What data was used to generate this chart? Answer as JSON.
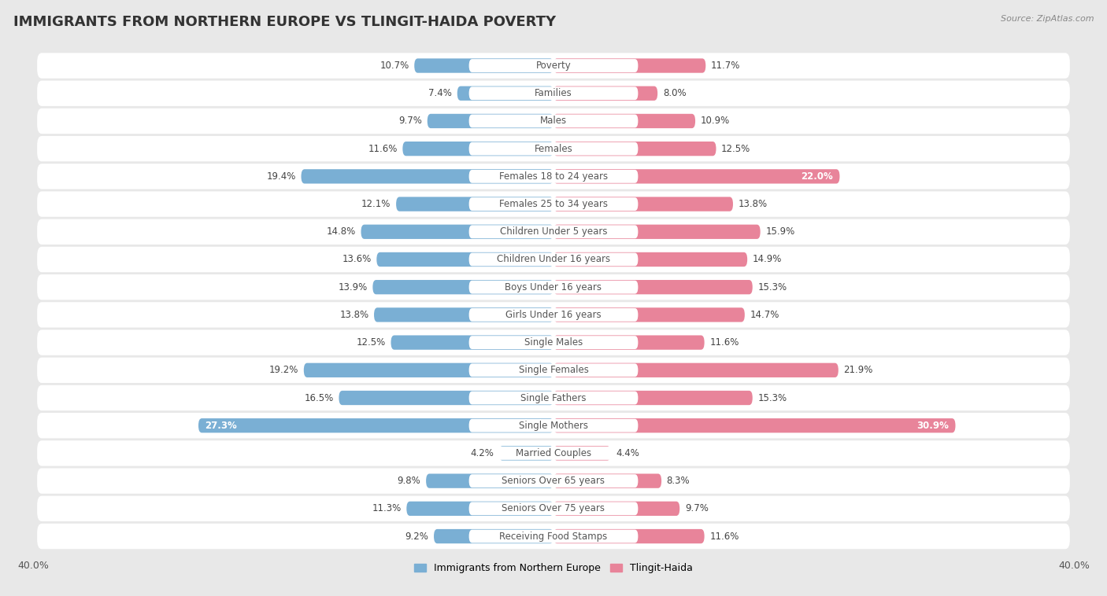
{
  "title": "IMMIGRANTS FROM NORTHERN EUROPE VS TLINGIT-HAIDA POVERTY",
  "source": "Source: ZipAtlas.com",
  "categories": [
    "Poverty",
    "Families",
    "Males",
    "Females",
    "Females 18 to 24 years",
    "Females 25 to 34 years",
    "Children Under 5 years",
    "Children Under 16 years",
    "Boys Under 16 years",
    "Girls Under 16 years",
    "Single Males",
    "Single Females",
    "Single Fathers",
    "Single Mothers",
    "Married Couples",
    "Seniors Over 65 years",
    "Seniors Over 75 years",
    "Receiving Food Stamps"
  ],
  "left_values": [
    10.7,
    7.4,
    9.7,
    11.6,
    19.4,
    12.1,
    14.8,
    13.6,
    13.9,
    13.8,
    12.5,
    19.2,
    16.5,
    27.3,
    4.2,
    9.8,
    11.3,
    9.2
  ],
  "right_values": [
    11.7,
    8.0,
    10.9,
    12.5,
    22.0,
    13.8,
    15.9,
    14.9,
    15.3,
    14.7,
    11.6,
    21.9,
    15.3,
    30.9,
    4.4,
    8.3,
    9.7,
    11.6
  ],
  "left_color": "#7aafd4",
  "right_color": "#e8849a",
  "left_label": "Immigrants from Northern Europe",
  "right_label": "Tlingit-Haida",
  "xlim": 40.0,
  "bg_color": "#e8e8e8",
  "row_bg_color": "#f5f5f5",
  "bar_bg_color": "#ffffff",
  "title_fontsize": 13,
  "label_fontsize": 8.5,
  "value_fontsize": 8.5
}
